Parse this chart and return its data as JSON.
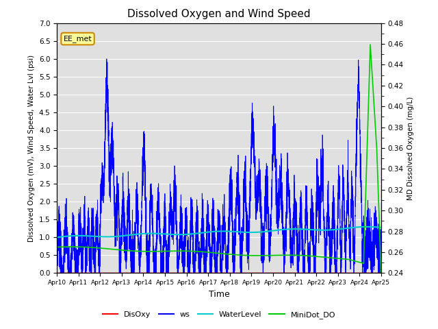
{
  "title": "Dissolved Oxygen and Wind Speed",
  "ylabel_left": "Dissolved Oxygen (mV), Wind Speed, Water Lvl (psi)",
  "ylabel_right": "MD Dissolved Oxygen (mg/L)",
  "xlabel": "Time",
  "annotation": "EE_met",
  "ylim_left": [
    0.0,
    7.0
  ],
  "ylim_right": [
    0.24,
    0.48
  ],
  "background_color": "#e0e0e0",
  "legend_entries": [
    "DisOxy",
    "ws",
    "WaterLevel",
    "MiniDot_DO"
  ],
  "legend_colors": [
    "#ff0000",
    "#0000ff",
    "#00cccc",
    "#00cc00"
  ],
  "tick_labels": [
    "Apr 10",
    "Apr 11",
    "Apr 12",
    "Apr 13",
    "Apr 14",
    "Apr 15",
    "Apr 16",
    "Apr 17",
    "Apr 18",
    "Apr 19",
    "Apr 20",
    "Apr 21",
    "Apr 22",
    "Apr 23",
    "Apr 24",
    "Apr 25"
  ],
  "yticks_left": [
    0.0,
    0.5,
    1.0,
    1.5,
    2.0,
    2.5,
    3.0,
    3.5,
    4.0,
    4.5,
    5.0,
    5.5,
    6.0,
    6.5,
    7.0
  ],
  "yticks_right": [
    0.24,
    0.26,
    0.28,
    0.3,
    0.32,
    0.34,
    0.36,
    0.38,
    0.4,
    0.42,
    0.44,
    0.46,
    0.48
  ]
}
